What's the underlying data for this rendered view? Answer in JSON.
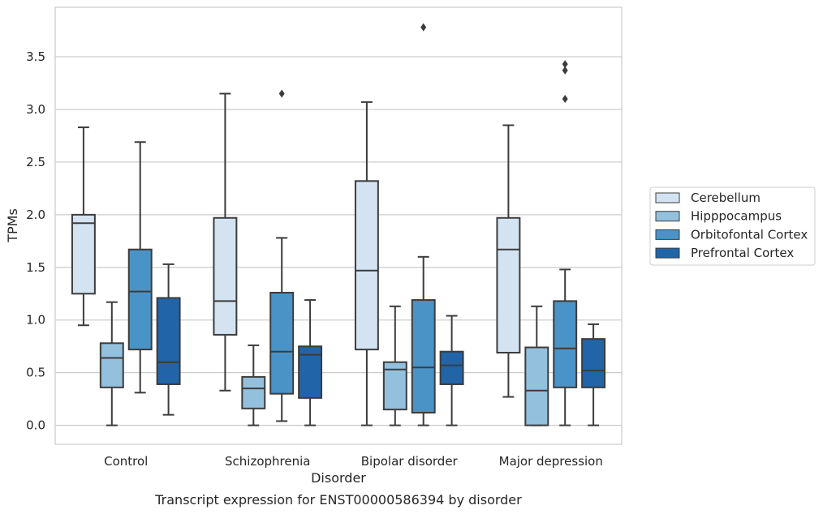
{
  "chart_data": {
    "type": "boxplot",
    "caption": "Transcript expression for ENST00000586394 by disorder",
    "xlabel": "Disorder",
    "ylabel": "TPMs",
    "ylim": [
      -0.18,
      3.97
    ],
    "yticks": [
      "0.0",
      "0.5",
      "1.0",
      "1.5",
      "2.0",
      "2.5",
      "3.0",
      "3.5"
    ],
    "grid": "horizontal",
    "legend_position": "right",
    "categories": [
      "Control",
      "Schizophrenia",
      "Bipolar disorder",
      "Major depression"
    ],
    "colors": {
      "Cerebellum": "#d4e3f2",
      "Hipppocampus": "#93c0dd",
      "Orbitofontal Cortex": "#4a93c6",
      "Prefrontal Cortex": "#2164a8",
      "line": "#3c3c3c",
      "grid": "#cccccc",
      "frame": "#cccccc"
    },
    "series": [
      {
        "name": "Cerebellum",
        "boxes": [
          {
            "whislo": 0.95,
            "q1": 1.25,
            "med": 1.92,
            "q3": 2.0,
            "whishi": 2.83,
            "fliers": []
          },
          {
            "whislo": 0.33,
            "q1": 0.86,
            "med": 1.18,
            "q3": 1.97,
            "whishi": 3.15,
            "fliers": []
          },
          {
            "whislo": 0.0,
            "q1": 0.72,
            "med": 1.47,
            "q3": 2.32,
            "whishi": 3.07,
            "fliers": []
          },
          {
            "whislo": 0.27,
            "q1": 0.69,
            "med": 1.67,
            "q3": 1.97,
            "whishi": 2.85,
            "fliers": []
          }
        ]
      },
      {
        "name": "Hipppocampus",
        "boxes": [
          {
            "whislo": 0.0,
            "q1": 0.36,
            "med": 0.64,
            "q3": 0.78,
            "whishi": 1.17,
            "fliers": []
          },
          {
            "whislo": 0.0,
            "q1": 0.16,
            "med": 0.35,
            "q3": 0.46,
            "whishi": 0.76,
            "fliers": []
          },
          {
            "whislo": 0.0,
            "q1": 0.15,
            "med": 0.53,
            "q3": 0.6,
            "whishi": 1.13,
            "fliers": []
          },
          {
            "whislo": 0.0,
            "q1": 0.0,
            "med": 0.33,
            "q3": 0.74,
            "whishi": 1.13,
            "fliers": []
          }
        ]
      },
      {
        "name": "Orbitofontal Cortex",
        "boxes": [
          {
            "whislo": 0.31,
            "q1": 0.72,
            "med": 1.27,
            "q3": 1.67,
            "whishi": 2.69,
            "fliers": []
          },
          {
            "whislo": 0.04,
            "q1": 0.3,
            "med": 0.7,
            "q3": 1.26,
            "whishi": 1.78,
            "fliers": [
              3.15
            ]
          },
          {
            "whislo": 0.0,
            "q1": 0.12,
            "med": 0.55,
            "q3": 1.19,
            "whishi": 1.6,
            "fliers": [
              3.78
            ]
          },
          {
            "whislo": 0.0,
            "q1": 0.36,
            "med": 0.73,
            "q3": 1.18,
            "whishi": 1.48,
            "fliers": [
              3.1,
              3.37,
              3.43
            ]
          }
        ]
      },
      {
        "name": "Prefrontal Cortex",
        "boxes": [
          {
            "whislo": 0.1,
            "q1": 0.39,
            "med": 0.6,
            "q3": 1.21,
            "whishi": 1.53,
            "fliers": []
          },
          {
            "whislo": 0.0,
            "q1": 0.26,
            "med": 0.67,
            "q3": 0.75,
            "whishi": 1.19,
            "fliers": []
          },
          {
            "whislo": 0.0,
            "q1": 0.39,
            "med": 0.57,
            "q3": 0.7,
            "whishi": 1.04,
            "fliers": []
          },
          {
            "whislo": 0.0,
            "q1": 0.36,
            "med": 0.52,
            "q3": 0.82,
            "whishi": 0.96,
            "fliers": []
          }
        ]
      }
    ]
  }
}
